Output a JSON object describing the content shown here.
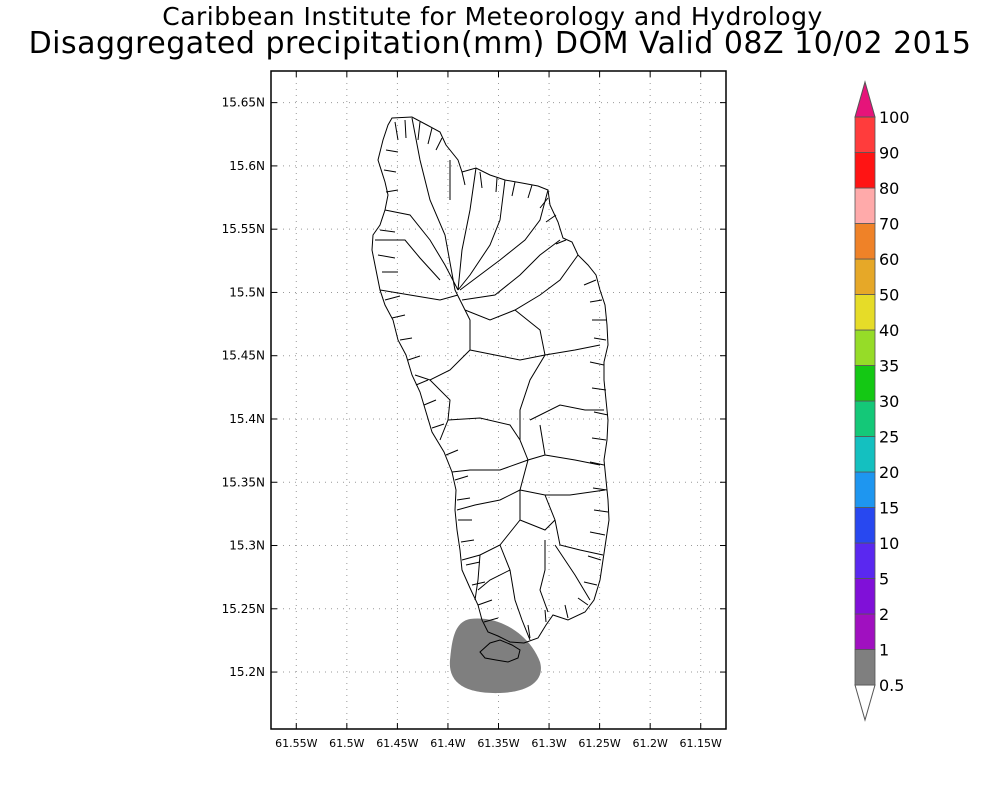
{
  "header": {
    "institution": "Caribbean Institute for Meteorology and Hydrology",
    "product": "Disaggregated precipitation(mm) DOM Valid 08Z 10/02 2015"
  },
  "map": {
    "lat_axis": {
      "range": [
        15.155,
        15.675
      ],
      "ticks": [
        {
          "value": 15.65,
          "label": "15.65N"
        },
        {
          "value": 15.6,
          "label": "15.6N"
        },
        {
          "value": 15.55,
          "label": "15.55N"
        },
        {
          "value": 15.5,
          "label": "15.5N"
        },
        {
          "value": 15.45,
          "label": "15.45N"
        },
        {
          "value": 15.4,
          "label": "15.4N"
        },
        {
          "value": 15.35,
          "label": "15.35N"
        },
        {
          "value": 15.3,
          "label": "15.3N"
        },
        {
          "value": 15.25,
          "label": "15.25N"
        },
        {
          "value": 15.2,
          "label": "15.2N"
        }
      ]
    },
    "lon_axis": {
      "range": [
        -61.575,
        -61.125
      ],
      "ticks": [
        {
          "value": -61.55,
          "label": "61.55W"
        },
        {
          "value": -61.5,
          "label": "61.5W"
        },
        {
          "value": -61.45,
          "label": "61.45W"
        },
        {
          "value": -61.4,
          "label": "61.4W"
        },
        {
          "value": -61.35,
          "label": "61.35W"
        },
        {
          "value": -61.3,
          "label": "61.3W"
        },
        {
          "value": -61.25,
          "label": "61.25W"
        },
        {
          "value": -61.2,
          "label": "61.2W"
        },
        {
          "value": -61.15,
          "label": "61.15W"
        }
      ]
    },
    "grid": true,
    "precip_area": {
      "category": "0.5-1",
      "color": "#7f7f7f",
      "center_lat": 15.21,
      "center_lon": -61.358
    }
  },
  "legend": {
    "placement": "right",
    "levels": [
      {
        "label": "0.5",
        "color": "#ffffff"
      },
      {
        "label": "1",
        "color": "#7f7f7f"
      },
      {
        "label": "2",
        "color": "#a010c0"
      },
      {
        "label": "5",
        "color": "#8010d8"
      },
      {
        "label": "10",
        "color": "#5a28f0"
      },
      {
        "label": "15",
        "color": "#2848f0"
      },
      {
        "label": "20",
        "color": "#1e96f0"
      },
      {
        "label": "25",
        "color": "#14c0c0"
      },
      {
        "label": "30",
        "color": "#14c878"
      },
      {
        "label": "35",
        "color": "#14c814"
      },
      {
        "label": "40",
        "color": "#96dc28"
      },
      {
        "label": "50",
        "color": "#e6dc28"
      },
      {
        "label": "60",
        "color": "#e6a828"
      },
      {
        "label": "70",
        "color": "#ef8228"
      },
      {
        "label": "80",
        "color": "#ffaaaa"
      },
      {
        "label": "90",
        "color": "#ff1414"
      },
      {
        "label": "100",
        "color": "#ff3c3c"
      }
    ],
    "top_color": "#e6147a"
  }
}
